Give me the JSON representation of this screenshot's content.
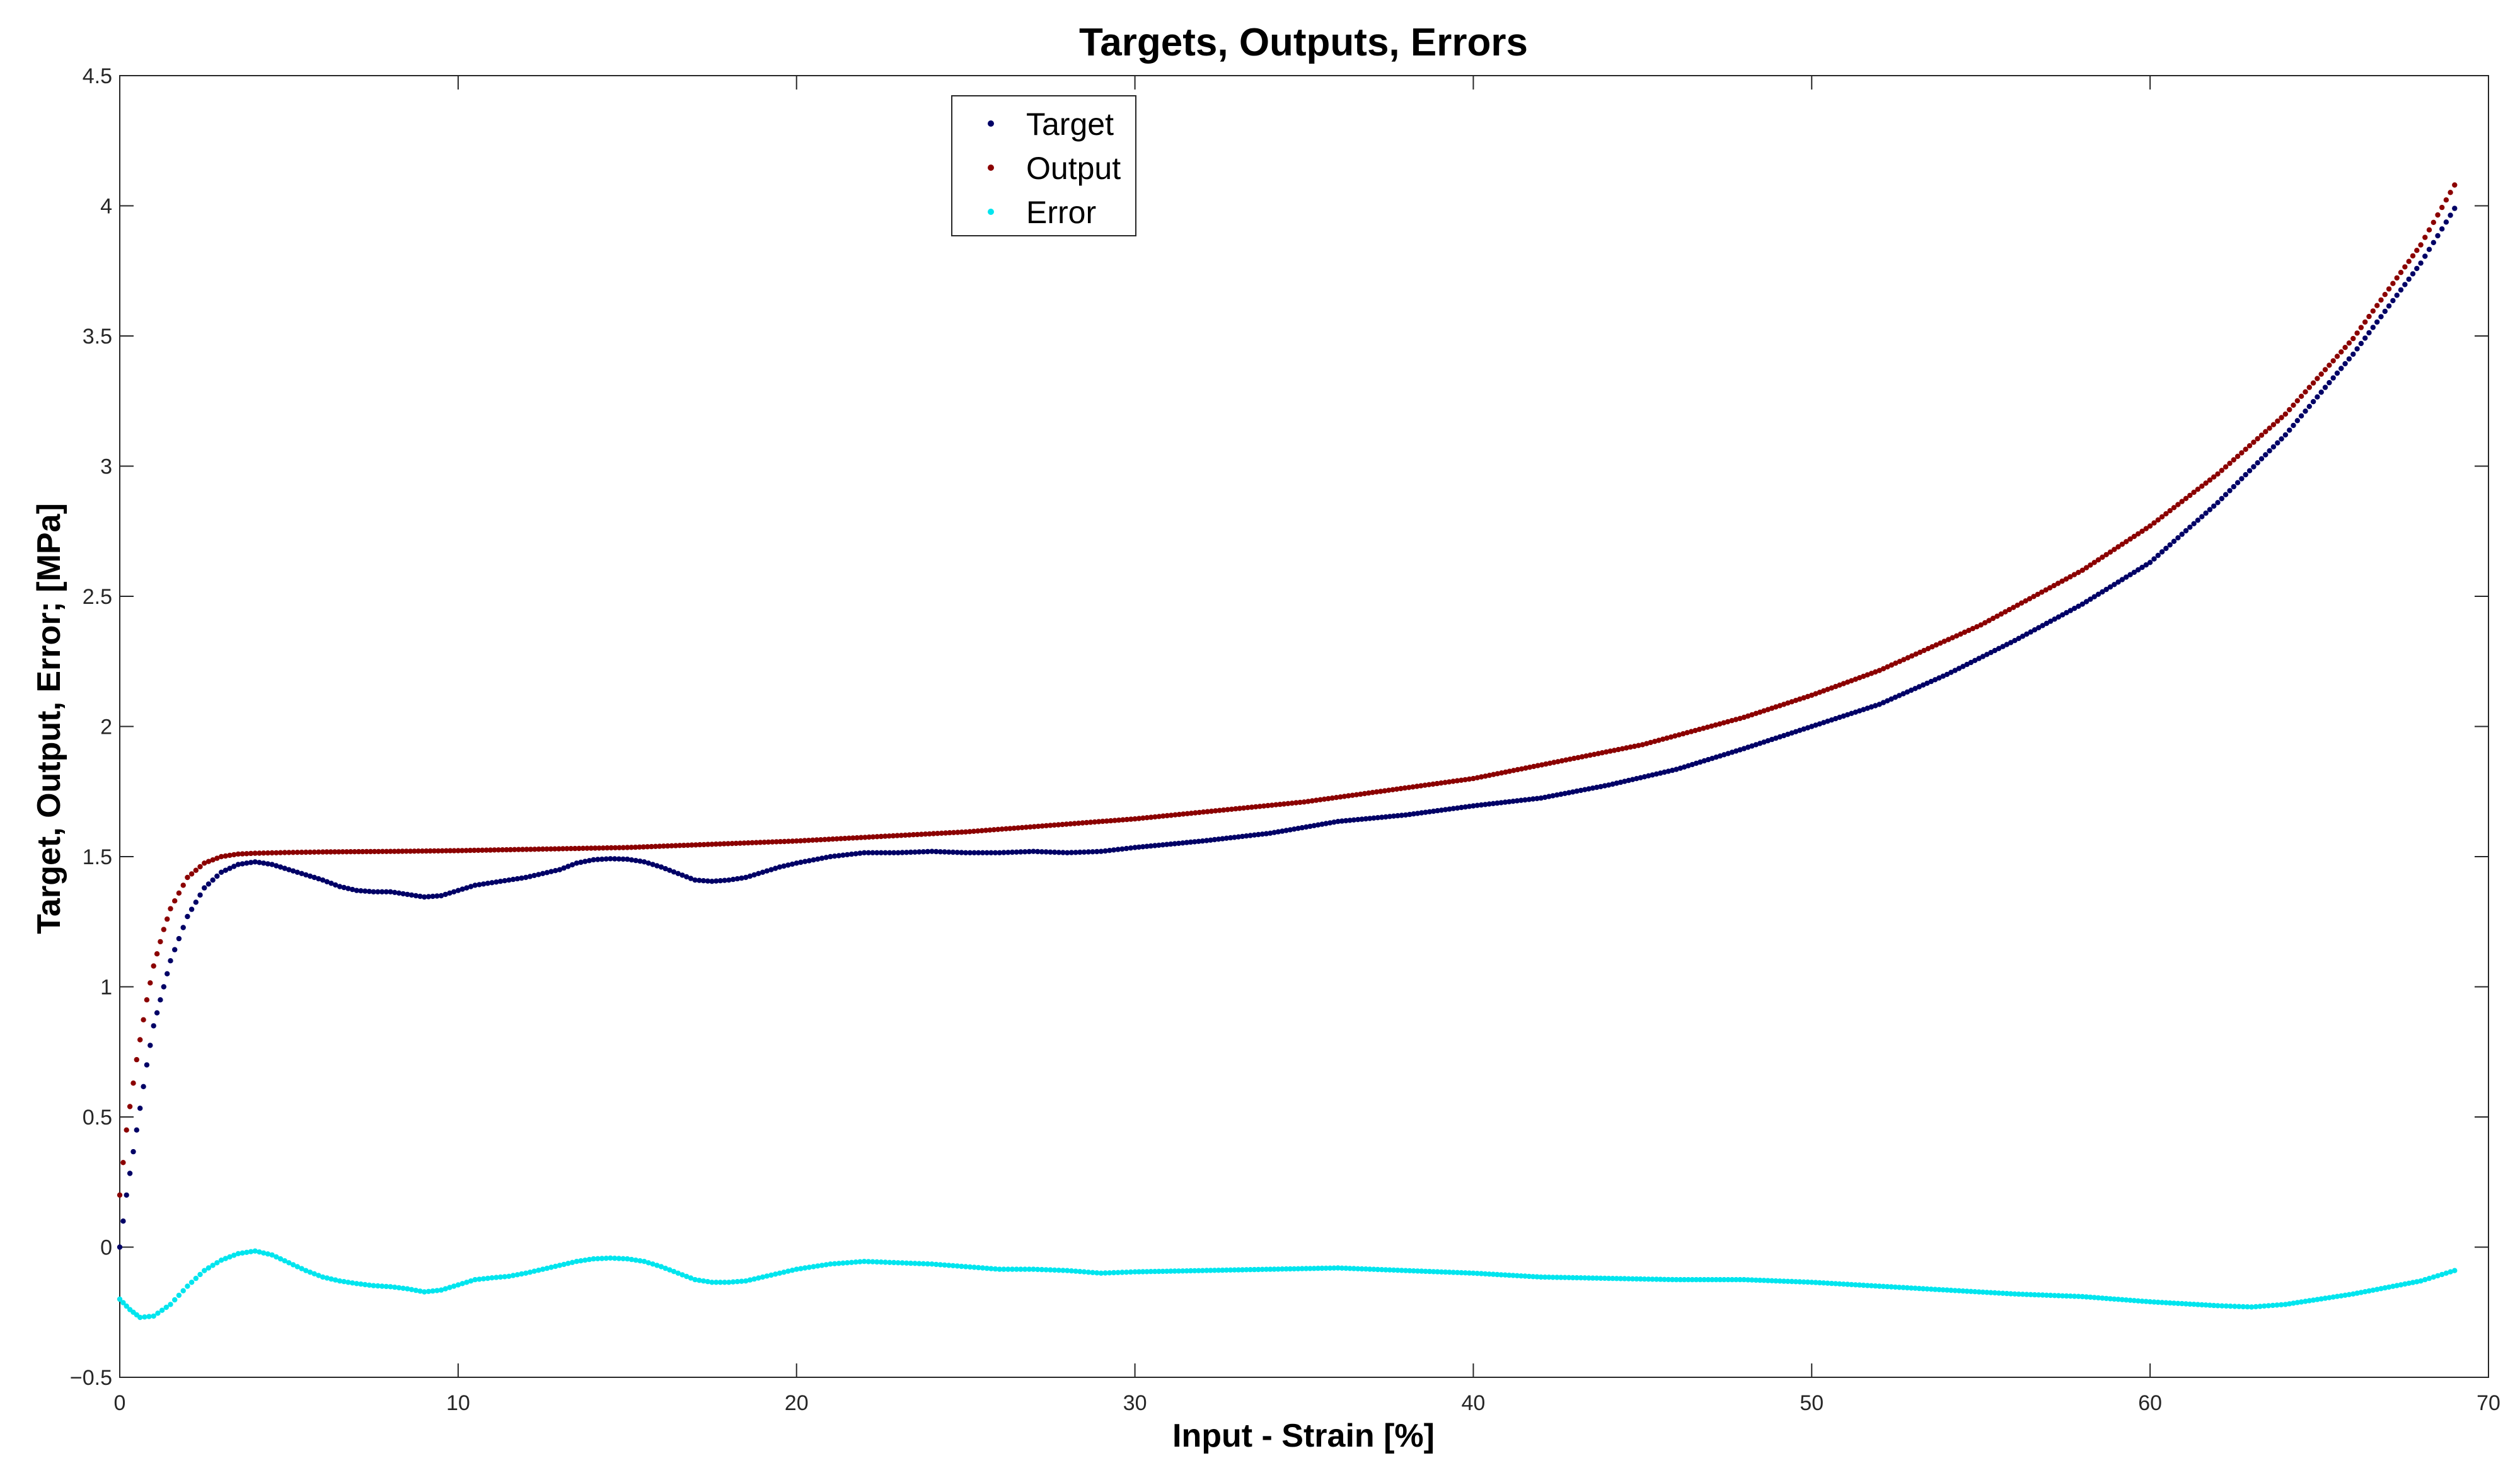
{
  "chart_data": {
    "type": "scatter",
    "title": "Targets, Outputs, Errors",
    "xlabel": "Input - Strain [%]",
    "ylabel": "Target, Output, Error; [MPa]",
    "xlim": [
      0,
      70
    ],
    "ylim": [
      -0.5,
      4.5
    ],
    "xticks": [
      0,
      10,
      20,
      30,
      40,
      50,
      60,
      70
    ],
    "yticks": [
      -0.5,
      0,
      0.5,
      1,
      1.5,
      2,
      2.5,
      3,
      3.5,
      4,
      4.5
    ],
    "xtick_labels": [
      "0",
      "10",
      "20",
      "30",
      "40",
      "50",
      "60",
      "70"
    ],
    "ytick_labels": [
      "−0.5",
      "0",
      "0.5",
      "1",
      "1.5",
      "2",
      "2.5",
      "3",
      "3.5",
      "4",
      "4.5"
    ],
    "grid": false,
    "legend": {
      "position": "top-center",
      "entries": [
        "Target",
        "Output",
        "Error"
      ]
    },
    "series": [
      {
        "name": "Target",
        "color": "#000066",
        "x": [
          0,
          0.2,
          0.5,
          0.8,
          1.0,
          1.3,
          1.5,
          2.0,
          2.5,
          3.0,
          3.5,
          4.0,
          4.5,
          5.0,
          5.5,
          6.0,
          6.5,
          7.0,
          7.5,
          8.0,
          8.5,
          9.0,
          9.5,
          10.0,
          10.5,
          11.0,
          11.5,
          12.0,
          12.5,
          13.0,
          13.5,
          14.0,
          14.5,
          15.0,
          15.5,
          16.0,
          16.5,
          17.0,
          17.5,
          18.0,
          18.5,
          19.0,
          19.5,
          20.0,
          21.0,
          22.0,
          23.0,
          24.0,
          25.0,
          26.0,
          27.0,
          28.0,
          29.0,
          30.0,
          32.0,
          34.0,
          36.0,
          38.0,
          40.0,
          42.0,
          44.0,
          46.0,
          48.0,
          50.0,
          52.0,
          54.0,
          56.0,
          58.0,
          60.0,
          62.0,
          64.0,
          66.0,
          68.0,
          69.0
        ],
        "y": [
          0.0,
          0.2,
          0.45,
          0.7,
          0.85,
          1.0,
          1.1,
          1.27,
          1.38,
          1.44,
          1.47,
          1.48,
          1.47,
          1.45,
          1.43,
          1.41,
          1.385,
          1.37,
          1.365,
          1.365,
          1.355,
          1.345,
          1.35,
          1.37,
          1.39,
          1.4,
          1.41,
          1.42,
          1.435,
          1.45,
          1.475,
          1.488,
          1.492,
          1.49,
          1.48,
          1.46,
          1.435,
          1.41,
          1.405,
          1.41,
          1.42,
          1.44,
          1.46,
          1.475,
          1.5,
          1.515,
          1.515,
          1.52,
          1.515,
          1.515,
          1.52,
          1.515,
          1.52,
          1.535,
          1.56,
          1.59,
          1.635,
          1.66,
          1.695,
          1.725,
          1.775,
          1.835,
          1.915,
          2.0,
          2.085,
          2.2,
          2.33,
          2.47,
          2.63,
          2.86,
          3.12,
          3.43,
          3.78,
          3.99
        ]
      },
      {
        "name": "Output",
        "color": "#8b0000",
        "x": [
          0,
          0.2,
          0.5,
          0.8,
          1.0,
          1.3,
          1.5,
          2.0,
          2.5,
          3.0,
          3.5,
          4.0,
          5.0,
          6.0,
          8.0,
          10.0,
          15.0,
          20.0,
          25.0,
          30.0,
          35.0,
          40.0,
          45.0,
          48.0,
          50.0,
          52.0,
          55.0,
          58.0,
          60.0,
          62.0,
          64.0,
          66.0,
          68.0,
          69.0
        ],
        "y": [
          0.2,
          0.45,
          0.72,
          0.95,
          1.08,
          1.22,
          1.3,
          1.42,
          1.475,
          1.5,
          1.51,
          1.513,
          1.516,
          1.518,
          1.52,
          1.523,
          1.535,
          1.56,
          1.595,
          1.645,
          1.71,
          1.8,
          1.93,
          2.035,
          2.12,
          2.215,
          2.39,
          2.6,
          2.77,
          2.97,
          3.2,
          3.49,
          3.85,
          4.08
        ]
      },
      {
        "name": "Error",
        "color": "#00e5ee",
        "x": [
          0,
          0.3,
          0.6,
          1.0,
          1.5,
          2.0,
          2.5,
          3.0,
          3.5,
          4.0,
          4.5,
          5.0,
          5.5,
          6.0,
          6.5,
          7.0,
          7.5,
          8.0,
          8.5,
          9.0,
          9.5,
          10.0,
          10.5,
          11.0,
          11.5,
          12.0,
          12.5,
          13.0,
          13.5,
          14.0,
          14.5,
          15.0,
          15.5,
          16.0,
          16.5,
          17.0,
          17.5,
          18.0,
          18.5,
          19.0,
          19.5,
          20.0,
          21.0,
          22.0,
          23.0,
          24.0,
          25.0,
          26.0,
          27.0,
          28.0,
          29.0,
          30.0,
          32.0,
          34.0,
          36.0,
          38.0,
          40.0,
          42.0,
          44.0,
          46.0,
          48.0,
          50.0,
          52.0,
          54.0,
          56.0,
          58.0,
          60.0,
          62.0,
          63.0,
          64.0,
          66.0,
          68.0,
          69.0
        ],
        "y": [
          -0.2,
          -0.24,
          -0.27,
          -0.265,
          -0.22,
          -0.15,
          -0.09,
          -0.05,
          -0.025,
          -0.015,
          -0.03,
          -0.06,
          -0.09,
          -0.115,
          -0.13,
          -0.14,
          -0.148,
          -0.152,
          -0.16,
          -0.172,
          -0.165,
          -0.145,
          -0.125,
          -0.118,
          -0.112,
          -0.1,
          -0.085,
          -0.07,
          -0.055,
          -0.045,
          -0.042,
          -0.045,
          -0.055,
          -0.075,
          -0.1,
          -0.125,
          -0.135,
          -0.135,
          -0.13,
          -0.115,
          -0.1,
          -0.085,
          -0.065,
          -0.055,
          -0.06,
          -0.065,
          -0.075,
          -0.085,
          -0.085,
          -0.09,
          -0.1,
          -0.095,
          -0.09,
          -0.085,
          -0.08,
          -0.09,
          -0.1,
          -0.115,
          -0.12,
          -0.125,
          -0.125,
          -0.135,
          -0.15,
          -0.165,
          -0.18,
          -0.19,
          -0.21,
          -0.225,
          -0.23,
          -0.22,
          -0.18,
          -0.13,
          -0.09
        ]
      }
    ]
  }
}
